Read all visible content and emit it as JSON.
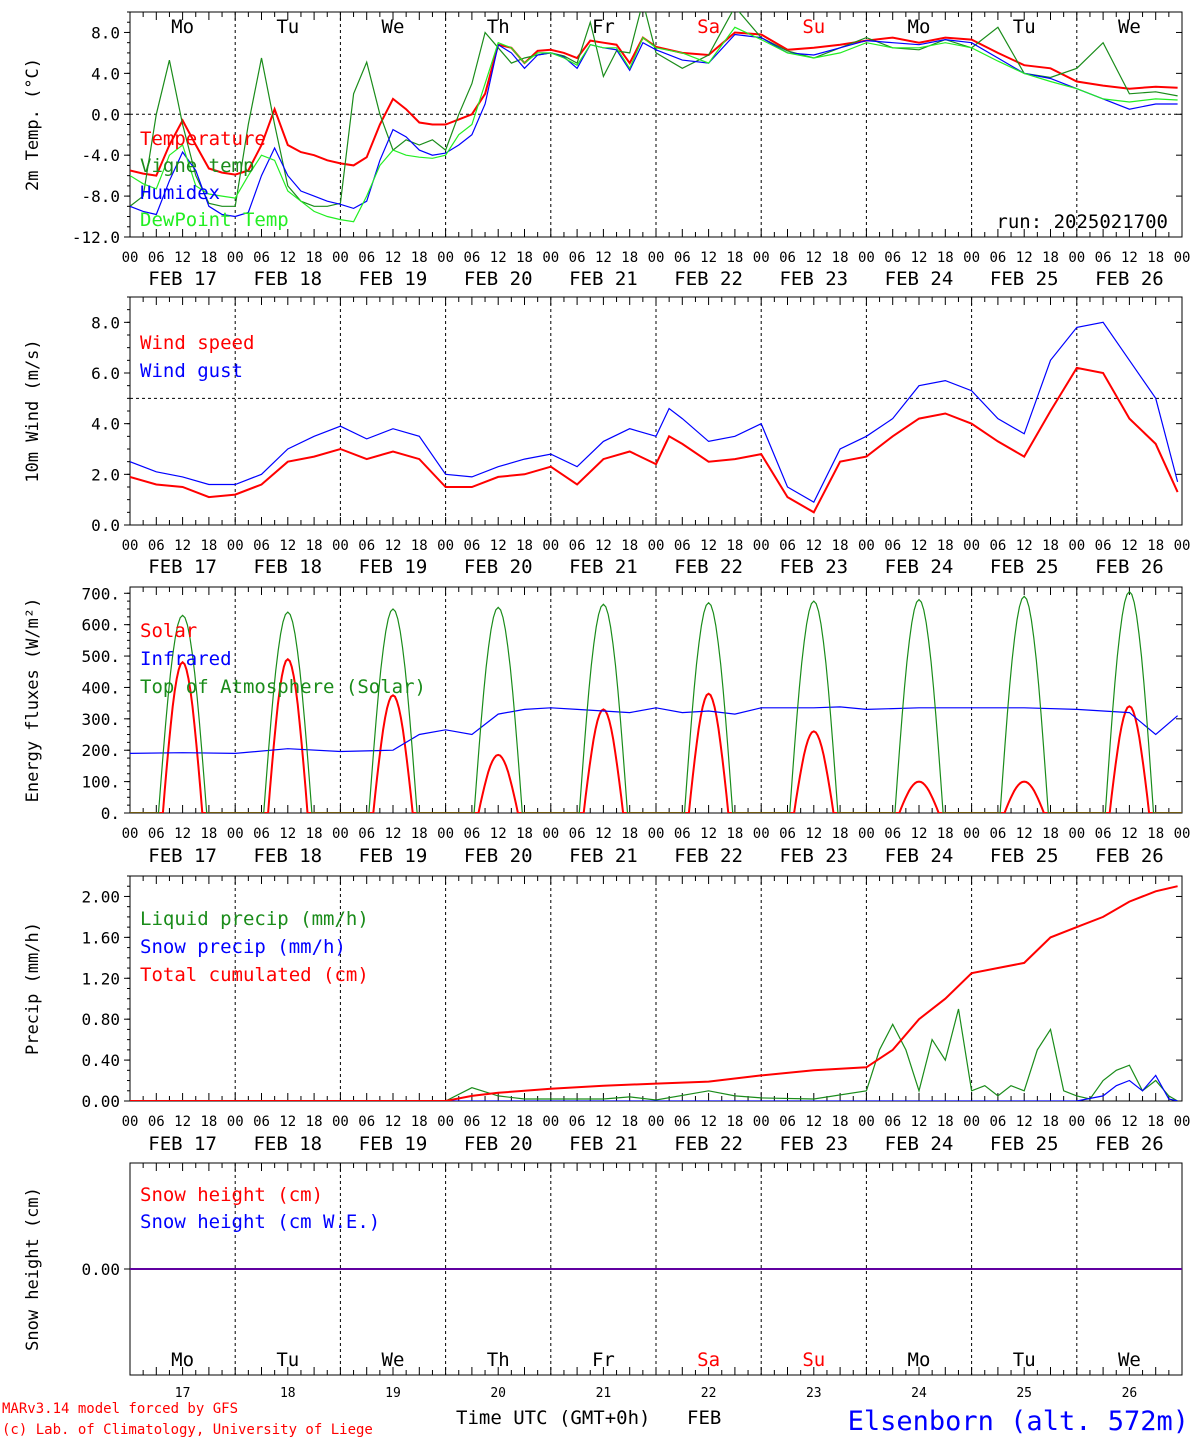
{
  "colors": {
    "red": "#ff0000",
    "blue": "#0000ff",
    "darkgreen": "#1a8c1a",
    "lightgreen": "#22ee22",
    "weekend": "#ff0000"
  },
  "days": [
    {
      "abbr": "Mo",
      "date": "FEB 17",
      "num": "17",
      "weekend": false
    },
    {
      "abbr": "Tu",
      "date": "FEB 18",
      "num": "18",
      "weekend": false
    },
    {
      "abbr": "We",
      "date": "FEB 19",
      "num": "19",
      "weekend": false
    },
    {
      "abbr": "Th",
      "date": "FEB 20",
      "num": "20",
      "weekend": false
    },
    {
      "abbr": "Fr",
      "date": "FEB 21",
      "num": "21",
      "weekend": false
    },
    {
      "abbr": "Sa",
      "date": "FEB 22",
      "num": "22",
      "weekend": true
    },
    {
      "abbr": "Su",
      "date": "FEB 23",
      "num": "23",
      "weekend": true
    },
    {
      "abbr": "Mo",
      "date": "FEB 24",
      "num": "24",
      "weekend": false
    },
    {
      "abbr": "Tu",
      "date": "FEB 25",
      "num": "25",
      "weekend": false
    },
    {
      "abbr": "We",
      "date": "FEB 26",
      "num": "26",
      "weekend": false
    }
  ],
  "hour_ticks": [
    "00",
    "06",
    "12",
    "18"
  ],
  "run_label": "run: 2025021700",
  "footer": {
    "model": "MARv3.14 model forced by GFS",
    "lab": "(c) Lab. of Climatology, University of Liege",
    "xaxis": "Time UTC (GMT+0h)",
    "month": "FEB",
    "station": "Elsenborn (alt. 572m)"
  },
  "chart_data": [
    {
      "type": "line",
      "ylabel": "2m Temp. (°C)",
      "ylim": [
        -12,
        10
      ],
      "yticks": [
        "-12.0",
        "-8.0",
        "-4.0",
        "0.0",
        "4.0",
        "8.0"
      ],
      "ytick_values": [
        -12,
        -8,
        -4,
        0,
        4,
        8
      ],
      "ref_line": 0,
      "x_unit": "hours since FEB 17 00 UTC",
      "series": [
        {
          "name": "Temperature",
          "color": "red",
          "x": [
            0,
            3,
            6,
            9,
            12,
            15,
            18,
            21,
            24,
            27,
            30,
            33,
            36,
            39,
            42,
            45,
            48,
            51,
            54,
            57,
            60,
            63,
            66,
            69,
            72,
            75,
            78,
            81,
            84,
            87,
            90,
            93,
            96,
            99,
            102,
            105,
            108,
            111,
            114,
            117,
            120,
            126,
            132,
            138,
            144,
            150,
            156,
            162,
            168,
            174,
            180,
            186,
            192,
            198,
            204,
            210,
            216,
            222,
            228,
            234,
            239
          ],
          "y": [
            -5.5,
            -5.8,
            -6,
            -3,
            -0.6,
            -3,
            -5.3,
            -5.7,
            -5.9,
            -5.5,
            -3,
            0.5,
            -3,
            -3.7,
            -4,
            -4.5,
            -4.8,
            -5,
            -4.2,
            -1,
            1.5,
            0.5,
            -0.8,
            -1,
            -1,
            -0.5,
            0,
            2,
            6.8,
            6.5,
            5,
            6.2,
            6.3,
            6,
            5.5,
            7.2,
            7,
            6.8,
            5,
            7.5,
            6.6,
            6,
            5.8,
            8,
            7.8,
            6.3,
            6.5,
            6.8,
            7.2,
            7.5,
            7,
            7.5,
            7.3,
            6,
            4.8,
            4.5,
            3.2,
            2.8,
            2.5,
            2.7,
            2.6
          ]
        },
        {
          "name": "Vigne temp",
          "color": "darkgreen",
          "x": [
            0,
            3,
            6,
            9,
            12,
            15,
            18,
            21,
            24,
            27,
            30,
            33,
            36,
            39,
            42,
            45,
            48,
            51,
            54,
            57,
            60,
            63,
            66,
            69,
            72,
            75,
            78,
            81,
            84,
            87,
            90,
            93,
            96,
            99,
            102,
            105,
            108,
            111,
            114,
            117,
            120,
            126,
            132,
            138,
            144,
            150,
            156,
            162,
            168,
            174,
            180,
            186,
            192,
            198,
            204,
            210,
            216,
            222,
            228,
            234,
            239
          ],
          "y": [
            -9,
            -8,
            0,
            5.3,
            -1,
            -6,
            -8.7,
            -9,
            -9,
            -1,
            5.5,
            -1,
            -7,
            -8.5,
            -9,
            -9,
            -8.7,
            2,
            5.1,
            0,
            -3.5,
            -2.5,
            -3,
            -2.5,
            -3.5,
            0,
            3,
            8,
            6.5,
            5,
            5.5,
            5.8,
            6,
            5.7,
            5,
            9,
            3.7,
            6.2,
            6,
            11,
            6,
            4.5,
            5.8,
            10.5,
            7.5,
            6.2,
            5.5,
            6.5,
            7.5,
            6.5,
            6.3,
            7.3,
            6.5,
            8.5,
            4,
            3.6,
            4.5,
            7,
            2,
            2.2,
            1.8
          ]
        },
        {
          "name": "Humidex",
          "color": "blue",
          "x": [
            0,
            3,
            6,
            9,
            12,
            15,
            18,
            21,
            24,
            27,
            30,
            33,
            36,
            39,
            42,
            45,
            48,
            51,
            54,
            57,
            60,
            63,
            66,
            69,
            72,
            75,
            78,
            81,
            84,
            87,
            90,
            93,
            96,
            99,
            102,
            105,
            108,
            111,
            114,
            117,
            120,
            126,
            132,
            138,
            144,
            150,
            156,
            162,
            168,
            174,
            180,
            186,
            192,
            198,
            204,
            210,
            216,
            222,
            228,
            234,
            239
          ],
          "y": [
            -9,
            -9.5,
            -9.8,
            -6.5,
            -3.7,
            -5.5,
            -9,
            -9.8,
            -10,
            -9.6,
            -6,
            -3.3,
            -6,
            -7.5,
            -8,
            -8.5,
            -8.8,
            -9.2,
            -8.5,
            -4.5,
            -1.5,
            -2.2,
            -3.5,
            -4,
            -3.8,
            -3,
            -2,
            1,
            6.8,
            6,
            4.5,
            5.8,
            6,
            5.6,
            4.5,
            6.8,
            6.5,
            6.3,
            4.3,
            7,
            6.3,
            5.3,
            5,
            7.8,
            7.5,
            6,
            5.8,
            6.5,
            7.2,
            7,
            6.8,
            7.3,
            7,
            5.5,
            4,
            3.5,
            2.5,
            1.5,
            0.5,
            1,
            1
          ]
        },
        {
          "name": "DewPoint Temp",
          "color": "lightgreen",
          "x": [
            0,
            3,
            6,
            9,
            12,
            15,
            18,
            21,
            24,
            27,
            30,
            33,
            36,
            39,
            42,
            45,
            48,
            51,
            54,
            57,
            60,
            63,
            66,
            69,
            72,
            75,
            78,
            81,
            84,
            87,
            90,
            93,
            96,
            99,
            102,
            105,
            108,
            111,
            114,
            117,
            120,
            126,
            132,
            138,
            144,
            150,
            156,
            162,
            168,
            174,
            180,
            186,
            192,
            198,
            204,
            210,
            216,
            222,
            228,
            234,
            239
          ],
          "y": [
            -6,
            -6.8,
            -7.3,
            -4,
            -3,
            -7,
            -7.8,
            -8,
            -8.2,
            -6,
            -4,
            -4.5,
            -7.5,
            -8.5,
            -9.5,
            -10,
            -10.3,
            -10.5,
            -8,
            -5,
            -3.5,
            -4,
            -4.2,
            -4.3,
            -4,
            -2,
            -1,
            3,
            7,
            6.5,
            5,
            6,
            6,
            5.5,
            4.8,
            6.8,
            6.5,
            6.5,
            4.5,
            7.5,
            6.5,
            6,
            5,
            8.5,
            7.3,
            6,
            5.5,
            6,
            7,
            6.5,
            6.5,
            7,
            6.5,
            5.2,
            4,
            3.2,
            2.5,
            1.5,
            1.2,
            1.5,
            1.4
          ]
        }
      ]
    },
    {
      "type": "line",
      "ylabel": "10m Wind (m/s)",
      "ylim": [
        0,
        9
      ],
      "yticks": [
        "0.0",
        "2.0",
        "4.0",
        "6.0",
        "8.0"
      ],
      "ytick_values": [
        0,
        2,
        4,
        6,
        8
      ],
      "ref_line": 5,
      "series": [
        {
          "name": "Wind speed",
          "color": "red",
          "x": [
            0,
            6,
            12,
            18,
            24,
            30,
            36,
            42,
            48,
            54,
            60,
            66,
            72,
            78,
            84,
            90,
            96,
            102,
            108,
            114,
            120,
            123,
            126,
            132,
            138,
            144,
            150,
            156,
            162,
            168,
            174,
            180,
            186,
            192,
            198,
            204,
            210,
            216,
            222,
            228,
            234,
            239
          ],
          "y": [
            1.9,
            1.6,
            1.5,
            1.1,
            1.2,
            1.6,
            2.5,
            2.7,
            3,
            2.6,
            2.9,
            2.6,
            1.5,
            1.5,
            1.9,
            2,
            2.3,
            1.6,
            2.6,
            2.9,
            2.4,
            3.5,
            3.2,
            2.5,
            2.6,
            2.8,
            1.1,
            0.5,
            2.5,
            2.7,
            3.5,
            4.2,
            4.4,
            4,
            3.3,
            2.7,
            4.5,
            6.2,
            6,
            4.2,
            3.2,
            1.3
          ]
        },
        {
          "name": "Wind gust",
          "color": "blue",
          "x": [
            0,
            6,
            12,
            18,
            24,
            30,
            36,
            42,
            48,
            54,
            60,
            66,
            72,
            78,
            84,
            90,
            96,
            102,
            108,
            114,
            120,
            123,
            126,
            132,
            138,
            144,
            150,
            156,
            162,
            168,
            174,
            180,
            186,
            192,
            198,
            204,
            210,
            216,
            222,
            228,
            234,
            239
          ],
          "y": [
            2.5,
            2.1,
            1.9,
            1.6,
            1.6,
            2,
            3,
            3.5,
            3.9,
            3.4,
            3.8,
            3.5,
            2,
            1.9,
            2.3,
            2.6,
            2.8,
            2.3,
            3.3,
            3.8,
            3.5,
            4.6,
            4.2,
            3.3,
            3.5,
            4,
            1.5,
            0.9,
            3,
            3.5,
            4.2,
            5.5,
            5.7,
            5.3,
            4.2,
            3.6,
            6.5,
            7.8,
            8,
            6.5,
            5,
            1.7
          ]
        }
      ]
    },
    {
      "type": "line",
      "ylabel": "Energy fluxes (W/m²)",
      "ylim": [
        0,
        720
      ],
      "yticks": [
        "0.",
        "100.",
        "200.",
        "300.",
        "400.",
        "500.",
        "600.",
        "700."
      ],
      "ytick_values": [
        0,
        100,
        200,
        300,
        400,
        500,
        600,
        700
      ],
      "series": [
        {
          "name": "Solar",
          "color": "red",
          "daily_peaks": [
            480,
            490,
            375,
            185,
            330,
            380,
            260,
            100,
            100,
            340
          ]
        },
        {
          "name": "Infrared",
          "color": "blue",
          "x": [
            0,
            12,
            24,
            36,
            48,
            60,
            66,
            72,
            78,
            84,
            90,
            96,
            102,
            108,
            114,
            120,
            126,
            132,
            138,
            144,
            150,
            156,
            162,
            168,
            180,
            192,
            204,
            216,
            228,
            234,
            239
          ],
          "y": [
            190,
            192,
            190,
            205,
            196,
            200,
            250,
            265,
            250,
            315,
            330,
            335,
            330,
            325,
            320,
            335,
            320,
            325,
            315,
            335,
            335,
            335,
            338,
            330,
            335,
            335,
            335,
            330,
            320,
            250,
            310
          ]
        },
        {
          "name": "Top of Atmosphere (Solar)",
          "color": "darkgreen",
          "daily_peaks": [
            630,
            640,
            650,
            655,
            665,
            670,
            675,
            680,
            690,
            705
          ]
        }
      ]
    },
    {
      "type": "line",
      "ylabel": "Precip (mm/h)",
      "ylim": [
        0,
        2.2
      ],
      "yticks": [
        "0.00",
        "0.40",
        "0.80",
        "1.20",
        "1.60",
        "2.00"
      ],
      "ytick_values": [
        0,
        0.4,
        0.8,
        1.2,
        1.6,
        2.0
      ],
      "series": [
        {
          "name": "Liquid precip (mm/h)",
          "color": "darkgreen",
          "x": [
            0,
            72,
            78,
            84,
            90,
            108,
            114,
            120,
            132,
            138,
            144,
            156,
            168,
            171,
            174,
            177,
            180,
            183,
            186,
            189,
            192,
            195,
            198,
            201,
            204,
            207,
            210,
            213,
            216,
            219,
            222,
            225,
            228,
            231,
            234,
            237,
            239
          ],
          "y": [
            0,
            0,
            0.13,
            0.05,
            0.02,
            0.02,
            0.04,
            0.01,
            0.1,
            0.05,
            0.03,
            0.02,
            0.1,
            0.5,
            0.75,
            0.5,
            0.1,
            0.6,
            0.4,
            0.9,
            0.1,
            0.15,
            0.05,
            0.15,
            0.1,
            0.5,
            0.7,
            0.1,
            0.05,
            0.02,
            0.2,
            0.3,
            0.35,
            0.1,
            0.2,
            0.05,
            0
          ]
        },
        {
          "name": "Snow precip (mm/h)",
          "color": "blue",
          "x": [
            0,
            216,
            222,
            225,
            228,
            231,
            234,
            237,
            239
          ],
          "y": [
            0,
            0,
            0.05,
            0.15,
            0.2,
            0.1,
            0.25,
            0.02,
            0
          ]
        },
        {
          "name": "Total cumulated (cm)",
          "color": "red",
          "x": [
            0,
            72,
            78,
            84,
            96,
            108,
            120,
            132,
            144,
            156,
            168,
            174,
            180,
            186,
            192,
            198,
            204,
            210,
            216,
            222,
            228,
            234,
            239
          ],
          "y": [
            0,
            0,
            0.05,
            0.08,
            0.12,
            0.15,
            0.17,
            0.19,
            0.25,
            0.3,
            0.33,
            0.5,
            0.8,
            1.0,
            1.25,
            1.3,
            1.35,
            1.6,
            1.7,
            1.8,
            1.95,
            2.05,
            2.1
          ]
        }
      ]
    },
    {
      "type": "line",
      "ylabel": "Snow height (cm)",
      "ylim": [
        -1,
        1
      ],
      "yticks": [
        "0.00"
      ],
      "ytick_values": [
        0
      ],
      "series": [
        {
          "name": "Snow height (cm)",
          "color": "red",
          "x": [
            0,
            240
          ],
          "y": [
            0,
            0
          ]
        },
        {
          "name": "Snow height (cm W.E.)",
          "color": "blue",
          "x": [
            0,
            240
          ],
          "y": [
            0,
            0
          ]
        }
      ]
    }
  ]
}
